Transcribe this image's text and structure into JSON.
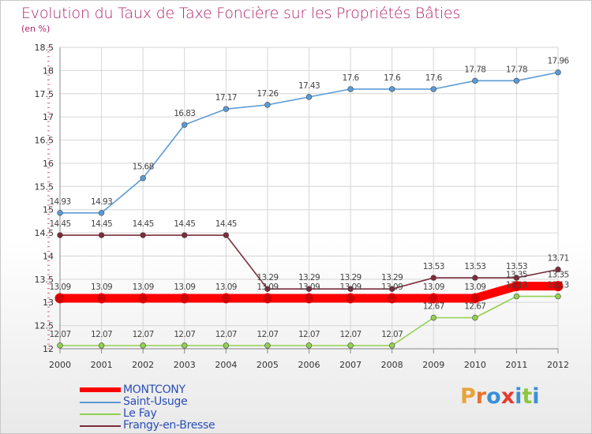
{
  "title": "Evolution du Taux de Taxe Foncière sur les Propriétés Bâties",
  "unit_label": "(en %)",
  "logo": {
    "text": "Proxiti",
    "colors": [
      "#e8a33c",
      "#e8732a",
      "#3a8fd8",
      "#e63b2e",
      "#3a8fd8",
      "#8cc63f",
      "#3a8fd8"
    ]
  },
  "chart_data": {
    "type": "line",
    "x": [
      "2000",
      "2001",
      "2002",
      "2003",
      "2004",
      "2005",
      "2006",
      "2007",
      "2008",
      "2009",
      "2010",
      "2011",
      "2012"
    ],
    "ylim": [
      12,
      18.5
    ],
    "yticks": [
      "12",
      "12.5",
      "13",
      "13.5",
      "14",
      "14.5",
      "15",
      "15.5",
      "16",
      "16.5",
      "17",
      "17.5",
      "18",
      "18.5"
    ],
    "grid": true,
    "legend_position": "bottom-left",
    "series": [
      {
        "name": "MONTCONY",
        "color": "#ff0000",
        "values": [
          13.09,
          13.09,
          13.09,
          13.09,
          13.09,
          13.09,
          13.09,
          13.09,
          13.09,
          13.09,
          13.09,
          13.35,
          13.35
        ],
        "labels": [
          "13.09",
          "13.09",
          "13.09",
          "13.09",
          "13.09",
          "13.09",
          "13.09",
          "13.09",
          "13.09",
          "13.09",
          "13.09",
          "13.35",
          "13.35"
        ]
      },
      {
        "name": "Saint-Usuge",
        "color": "#5b9bd5",
        "values": [
          14.93,
          14.93,
          15.68,
          16.83,
          17.17,
          17.26,
          17.43,
          17.6,
          17.6,
          17.6,
          17.78,
          17.78,
          17.96
        ],
        "labels": [
          "14.93",
          "14.93",
          "15.68",
          "16.83",
          "17.17",
          "17.26",
          "17.43",
          "17.6",
          "17.6",
          "17.6",
          "17.78",
          "17.78",
          "17.96"
        ]
      },
      {
        "name": "Le Fay",
        "color": "#92d050",
        "values": [
          12.07,
          12.07,
          12.07,
          12.07,
          12.07,
          12.07,
          12.07,
          12.07,
          12.07,
          12.67,
          12.67,
          13.13,
          13.13
        ],
        "labels": [
          "12.07",
          "12.07",
          "12.07",
          "12.07",
          "12.07",
          "12.07",
          "12.07",
          "12.07",
          "12.07",
          "12.67",
          "12.67",
          "13.13",
          "13.13"
        ]
      },
      {
        "name": "Frangy-en-Bresse",
        "color": "#7b2c3a",
        "values": [
          14.45,
          14.45,
          14.45,
          14.45,
          14.45,
          13.29,
          13.29,
          13.29,
          13.29,
          13.53,
          13.53,
          13.53,
          13.71
        ],
        "labels": [
          "14.45",
          "14.45",
          "14.45",
          "14.45",
          "14.45",
          "13.29",
          "13.29",
          "13.29",
          "13.29",
          "13.53",
          "13.53",
          "13.53",
          "13.71"
        ]
      }
    ]
  }
}
